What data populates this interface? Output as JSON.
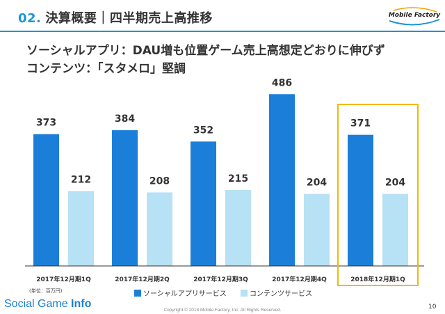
{
  "header": {
    "section_number": "02.",
    "section_title": "決算概要｜四半期売上高推移",
    "logo_text": "Mobile Factory",
    "colors": {
      "accent": "#1a96d6"
    }
  },
  "headline": {
    "line1": "ソーシャルアプリ：DAU増も位置ゲーム売上高想定どおりに伸びず",
    "line2": "コンテンツ：「スタメロ」堅調"
  },
  "chart_data": {
    "type": "bar",
    "categories": [
      "2017年12月期1Q",
      "2017年12月期2Q",
      "2017年12月期3Q",
      "2017年12月期4Q",
      "2018年12月期1Q"
    ],
    "series": [
      {
        "name": "ソーシャルアプリサービス",
        "color": "#1b7fd9",
        "values": [
          373,
          384,
          352,
          486,
          371
        ]
      },
      {
        "name": "コンテンツサービス",
        "color": "#b7e1f4",
        "values": [
          212,
          208,
          215,
          204,
          204
        ]
      }
    ],
    "ylim": [
      0,
      520
    ],
    "grid": false,
    "highlight_category_index": 4,
    "highlight_color": "#f5b800",
    "unit_note": "(単位：百万円)",
    "legend_position": "bottom"
  },
  "footer": {
    "watermark_normal": "Social Game ",
    "watermark_bold": "Info",
    "copyright": "Copyright © 2018 Mobile Factory, Inc. All Rights Reserved.",
    "page_number": "10"
  }
}
